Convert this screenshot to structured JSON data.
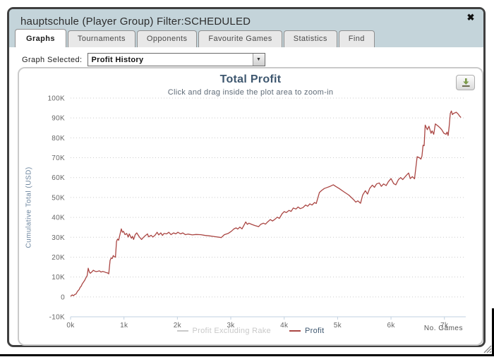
{
  "window": {
    "title": "hauptschule (Player Group) Filter:SCHEDULED"
  },
  "icons": {
    "close": "✖",
    "dropdown": "▼"
  },
  "tabs": [
    {
      "label": "Graphs",
      "active": true
    },
    {
      "label": "Tournaments",
      "active": false
    },
    {
      "label": "Opponents",
      "active": false
    },
    {
      "label": "Favourite Games",
      "active": false
    },
    {
      "label": "Statistics",
      "active": false
    },
    {
      "label": "Find",
      "active": false
    }
  ],
  "graph_selector": {
    "label": "Graph Selected:",
    "value": "Profit History"
  },
  "chart_data": {
    "type": "line",
    "title": "Total Profit",
    "subtitle": "Click and drag inside the plot area to zoom-in",
    "ylabel": "Cumulative Total (USD)",
    "xlabel": "No. Games",
    "xlim": [
      0,
      7400
    ],
    "ylim": [
      -10000,
      100000
    ],
    "grid": "horizontal-dotted",
    "legend_position": "bottom-center",
    "xticks": [
      0,
      1000,
      2000,
      3000,
      4000,
      5000,
      6000,
      7000
    ],
    "xtick_labels": [
      "0k",
      "1k",
      "2k",
      "3k",
      "4k",
      "5k",
      "6k",
      "7k"
    ],
    "yticks": [
      -10000,
      0,
      10000,
      20000,
      30000,
      40000,
      50000,
      60000,
      70000,
      80000,
      90000,
      100000
    ],
    "ytick_labels": [
      "-10K",
      "0",
      "10K",
      "20K",
      "30K",
      "40K",
      "50K",
      "60K",
      "70K",
      "80K",
      "90K",
      "100K"
    ],
    "colors": {
      "title": "#3E576F",
      "subtitle": "#5f6b77",
      "axis_title": "#6D869F",
      "grid": "#cccccc",
      "axis_line": "#c0d0e0",
      "tick_text": "#666666"
    },
    "legend": [
      {
        "name": "Profit Excluding Rake",
        "color": "#c9c9c9",
        "text_color": "#c9c9c9",
        "visible": false
      },
      {
        "name": "Profit",
        "color": "#AA4643",
        "text_color": "#3E576F",
        "visible": true
      }
    ],
    "series": [
      {
        "name": "Profit",
        "color": "#AA4643",
        "x": [
          0,
          30,
          55,
          80,
          100,
          130,
          160,
          180,
          200,
          220,
          240,
          265,
          290,
          310,
          330,
          350,
          370,
          400,
          425,
          450,
          480,
          510,
          540,
          570,
          600,
          630,
          660,
          690,
          715,
          740,
          760,
          780,
          800,
          820,
          840,
          860,
          880,
          900,
          930,
          950,
          970,
          990,
          1020,
          1050,
          1080,
          1100,
          1140,
          1160,
          1180,
          1210,
          1240,
          1290,
          1330,
          1360,
          1400,
          1440,
          1460,
          1510,
          1540,
          1580,
          1620,
          1650,
          1690,
          1720,
          1750,
          1800,
          1840,
          1880,
          1930,
          1970,
          2010,
          2060,
          2100,
          2150,
          2200,
          2280,
          2350,
          2440,
          2520,
          2600,
          2700,
          2790,
          2820,
          2880,
          2950,
          3010,
          3060,
          3100,
          3130,
          3170,
          3210,
          3280,
          3310,
          3340,
          3390,
          3450,
          3520,
          3560,
          3610,
          3650,
          3690,
          3740,
          3780,
          3820,
          3870,
          3910,
          3960,
          4000,
          4040,
          4090,
          4130,
          4170,
          4220,
          4260,
          4300,
          4350,
          4400,
          4440,
          4480,
          4520,
          4570,
          4600,
          4660,
          4700,
          4750,
          4800,
          4860,
          4920,
          4970,
          5030,
          5120,
          5210,
          5300,
          5340,
          5380,
          5430,
          5470,
          5520,
          5560,
          5600,
          5650,
          5690,
          5730,
          5780,
          5820,
          5860,
          5910,
          5950,
          6000,
          6050,
          6090,
          6140,
          6180,
          6220,
          6290,
          6330,
          6360,
          6400,
          6440,
          6470,
          6490,
          6530,
          6560,
          6580,
          6600,
          6620,
          6640,
          6680,
          6710,
          6750,
          6770,
          6800,
          6830,
          6880,
          6920,
          6950,
          6990,
          7030,
          7050,
          7070,
          7090,
          7110,
          7130,
          7150,
          7170,
          7200,
          7220,
          7260,
          7280,
          7310
        ],
        "y": [
          300,
          1000,
          600,
          1300,
          1400,
          2800,
          3700,
          4800,
          5400,
          6600,
          7400,
          8400,
          9700,
          10700,
          14400,
          12600,
          11900,
          12600,
          13400,
          13000,
          12700,
          12900,
          13100,
          12500,
          12800,
          12600,
          12300,
          12100,
          11600,
          18400,
          19600,
          19300,
          20800,
          20200,
          20000,
          27900,
          29100,
          28500,
          32000,
          34200,
          32500,
          33000,
          31300,
          31900,
          30100,
          31700,
          29500,
          30500,
          28900,
          31300,
          32200,
          30100,
          28900,
          29800,
          30800,
          31700,
          30200,
          31000,
          30100,
          31000,
          32500,
          31200,
          32200,
          30900,
          31900,
          31700,
          32500,
          31300,
          32200,
          31700,
          32500,
          31700,
          32200,
          31300,
          31600,
          31200,
          31400,
          31300,
          30900,
          30700,
          30300,
          30000,
          29800,
          31300,
          31900,
          33000,
          34200,
          34700,
          34100,
          35100,
          34200,
          37700,
          36500,
          37100,
          36500,
          35900,
          35300,
          36500,
          37100,
          36600,
          37700,
          38900,
          38200,
          38900,
          40100,
          39500,
          41800,
          42900,
          42400,
          43500,
          43000,
          44700,
          44200,
          45200,
          44400,
          44900,
          46200,
          45600,
          46800,
          46200,
          47500,
          47000,
          52500,
          53500,
          54500,
          55000,
          55600,
          56400,
          55500,
          54500,
          52800,
          51200,
          48900,
          47700,
          48300,
          47100,
          51200,
          53400,
          51700,
          54500,
          56200,
          55100,
          56800,
          57300,
          55600,
          56800,
          56000,
          57900,
          59500,
          57000,
          56400,
          59000,
          60000,
          59000,
          61200,
          62300,
          59500,
          60500,
          59400,
          66000,
          70500,
          70000,
          69300,
          70800,
          76300,
          76000,
          86400,
          84100,
          85800,
          82300,
          83500,
          81800,
          87000,
          86000,
          85000,
          84100,
          82300,
          81800,
          82900,
          81200,
          85800,
          92300,
          93500,
          91700,
          92300,
          92600,
          92900,
          91900,
          91100,
          90200
        ]
      }
    ]
  }
}
